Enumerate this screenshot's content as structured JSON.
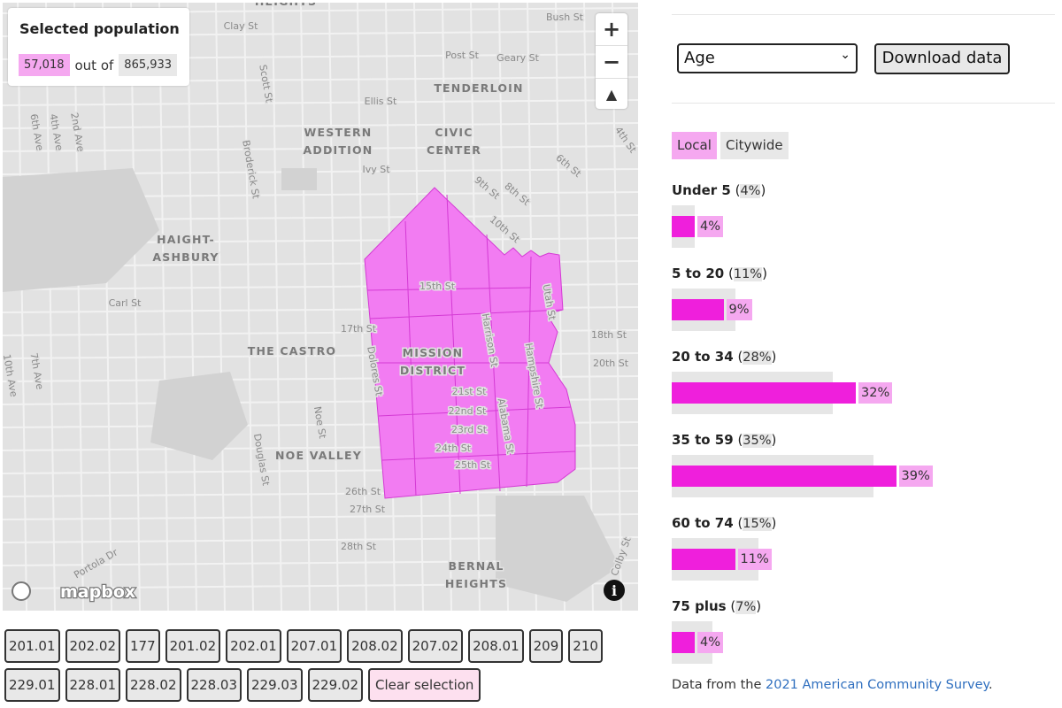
{
  "summary": {
    "title": "Selected population",
    "selected": "57,018",
    "connector": "out of",
    "total": "865,933"
  },
  "map": {
    "neighborhoods": [
      {
        "lines": [
          "HEIGHTS"
        ]
      },
      {
        "lines": [
          "TENDERLOIN"
        ]
      },
      {
        "lines": [
          "WESTERN",
          "ADDITION"
        ]
      },
      {
        "lines": [
          "CIVIC",
          "CENTER"
        ]
      },
      {
        "lines": [
          "HAIGHT-",
          "ASHBURY"
        ]
      },
      {
        "lines": [
          "THE CASTRO"
        ]
      },
      {
        "lines": [
          "MISSION",
          "DISTRICT"
        ]
      },
      {
        "lines": [
          "NOE VALLEY"
        ]
      },
      {
        "lines": [
          "BERNAL",
          "HEIGHTS"
        ]
      }
    ],
    "streets": [
      "Bush St",
      "Clay St",
      "Post St",
      "Geary St",
      "Ellis St",
      "Ivy St",
      "Broderick St",
      "Scott St",
      "Carl St",
      "17th St",
      "15th St",
      "Harrison St",
      "Hampshire St",
      "Utah St",
      "18th St",
      "20th St",
      "21st St",
      "22nd St",
      "23rd St",
      "24th St",
      "25th St",
      "26th St",
      "27th St",
      "28th St",
      "Alabama St",
      "Dolores St",
      "Noe St",
      "Douglas St",
      "7th Ave",
      "10th Ave",
      "6th Ave",
      "4th Ave",
      "2nd Ave",
      "9th St",
      "8th St",
      "10th St",
      "6th St",
      "4th St",
      "Portola Dr",
      "Colby St"
    ],
    "attribution": "mapbox"
  },
  "controls": {
    "variable": "Age",
    "download": "Download data",
    "tabs": [
      "Local",
      "Citywide"
    ]
  },
  "age_groups": [
    {
      "name": "Under 5",
      "citywide": 4,
      "citywide_label": "4%",
      "local": 4,
      "local_label": "4%"
    },
    {
      "name": "5 to 20",
      "citywide": 11,
      "citywide_label": "11%",
      "local": 9,
      "local_label": "9%"
    },
    {
      "name": "20 to 34",
      "citywide": 28,
      "citywide_label": "28%",
      "local": 32,
      "local_label": "32%"
    },
    {
      "name": "35 to 59",
      "citywide": 35,
      "citywide_label": "35%",
      "local": 39,
      "local_label": "39%"
    },
    {
      "name": "60 to 74",
      "citywide": 15,
      "citywide_label": "15%",
      "local": 11,
      "local_label": "11%"
    },
    {
      "name": "75 plus",
      "citywide": 7,
      "citywide_label": "7%",
      "local": 4,
      "local_label": "4%"
    }
  ],
  "tracts": [
    "201.01",
    "202.02",
    "177",
    "201.02",
    "202.01",
    "207.01",
    "208.02",
    "207.02",
    "208.01",
    "209",
    "210",
    "229.01",
    "228.01",
    "228.02",
    "228.03",
    "229.03",
    "229.02"
  ],
  "clear": "Clear selection",
  "footer": {
    "prefix": "Data from the",
    "link": "2021 American Community Survey",
    "suffix": "."
  }
}
